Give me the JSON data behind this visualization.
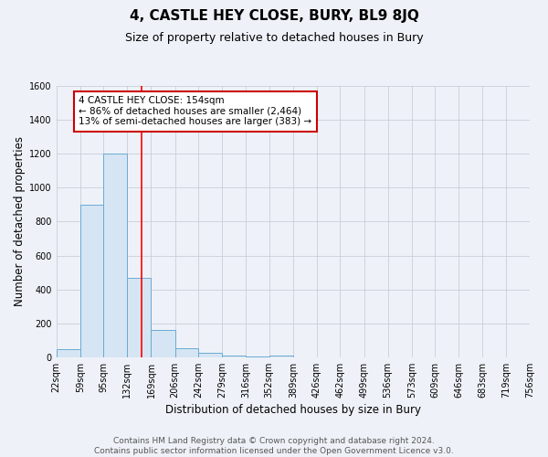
{
  "title": "4, CASTLE HEY CLOSE, BURY, BL9 8JQ",
  "subtitle": "Size of property relative to detached houses in Bury",
  "xlabel": "Distribution of detached houses by size in Bury",
  "ylabel": "Number of detached properties",
  "footnote": "Contains HM Land Registry data © Crown copyright and database right 2024.\nContains public sector information licensed under the Open Government Licence v3.0.",
  "bin_edges": [
    22,
    59,
    95,
    132,
    169,
    206,
    242,
    279,
    316,
    352,
    389,
    426,
    462,
    499,
    536,
    573,
    609,
    646,
    683,
    719,
    756
  ],
  "bar_heights": [
    50,
    900,
    1200,
    470,
    160,
    55,
    25,
    10,
    5,
    10,
    0,
    0,
    0,
    0,
    0,
    0,
    0,
    0,
    0,
    0
  ],
  "bar_color": "#d6e5f3",
  "bar_edge_color": "#6aaad4",
  "red_line_x": 154,
  "annotation_text": "4 CASTLE HEY CLOSE: 154sqm\n← 86% of detached houses are smaller (2,464)\n13% of semi-detached houses are larger (383) →",
  "annotation_box_color": "white",
  "annotation_box_edge": "#cc0000",
  "ylim": [
    0,
    1600
  ],
  "yticks": [
    0,
    200,
    400,
    600,
    800,
    1000,
    1200,
    1400,
    1600
  ],
  "background_color": "#eef2f8",
  "plot_bg_color": "#eef2f8",
  "grid_color": "#c8cdd8",
  "title_fontsize": 11,
  "subtitle_fontsize": 9,
  "axis_label_fontsize": 8.5,
  "tick_fontsize": 7,
  "annotation_fontsize": 7.5,
  "footnote_fontsize": 6.5
}
